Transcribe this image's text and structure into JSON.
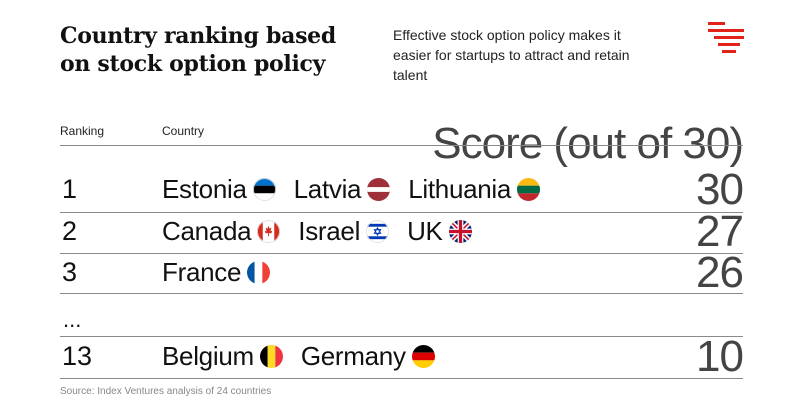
{
  "header": {
    "title": "Country ranking based on stock option policy",
    "subtitle": "Effective stock option policy makes it easier for startups to attract and retain talent",
    "logo_icon": "index-ventures-logo-icon",
    "accent_color": "#e2231a"
  },
  "table": {
    "columns": {
      "rank": "Ranking",
      "country": "Country",
      "score": "Score (out of 30)"
    },
    "rows": [
      {
        "rank": "1",
        "score": "30",
        "countries": [
          {
            "name": "Estonia",
            "flag": "estonia-flag-icon"
          },
          {
            "name": "Latvia",
            "flag": "latvia-flag-icon"
          },
          {
            "name": "Lithuania",
            "flag": "lithuania-flag-icon"
          }
        ]
      },
      {
        "rank": "2",
        "score": "27",
        "countries": [
          {
            "name": "Canada",
            "flag": "canada-flag-icon"
          },
          {
            "name": "Israel",
            "flag": "israel-flag-icon"
          },
          {
            "name": "UK",
            "flag": "uk-flag-icon"
          }
        ]
      },
      {
        "rank": "3",
        "score": "26",
        "countries": [
          {
            "name": "France",
            "flag": "france-flag-icon"
          }
        ]
      },
      {
        "rank": "13",
        "score": "10",
        "countries": [
          {
            "name": "Belgium",
            "flag": "belgium-flag-icon"
          },
          {
            "name": "Germany",
            "flag": "germany-flag-icon"
          }
        ]
      }
    ],
    "ellipsis": "..."
  },
  "footer": {
    "source": "Source: Index Ventures analysis of 24 countries"
  }
}
